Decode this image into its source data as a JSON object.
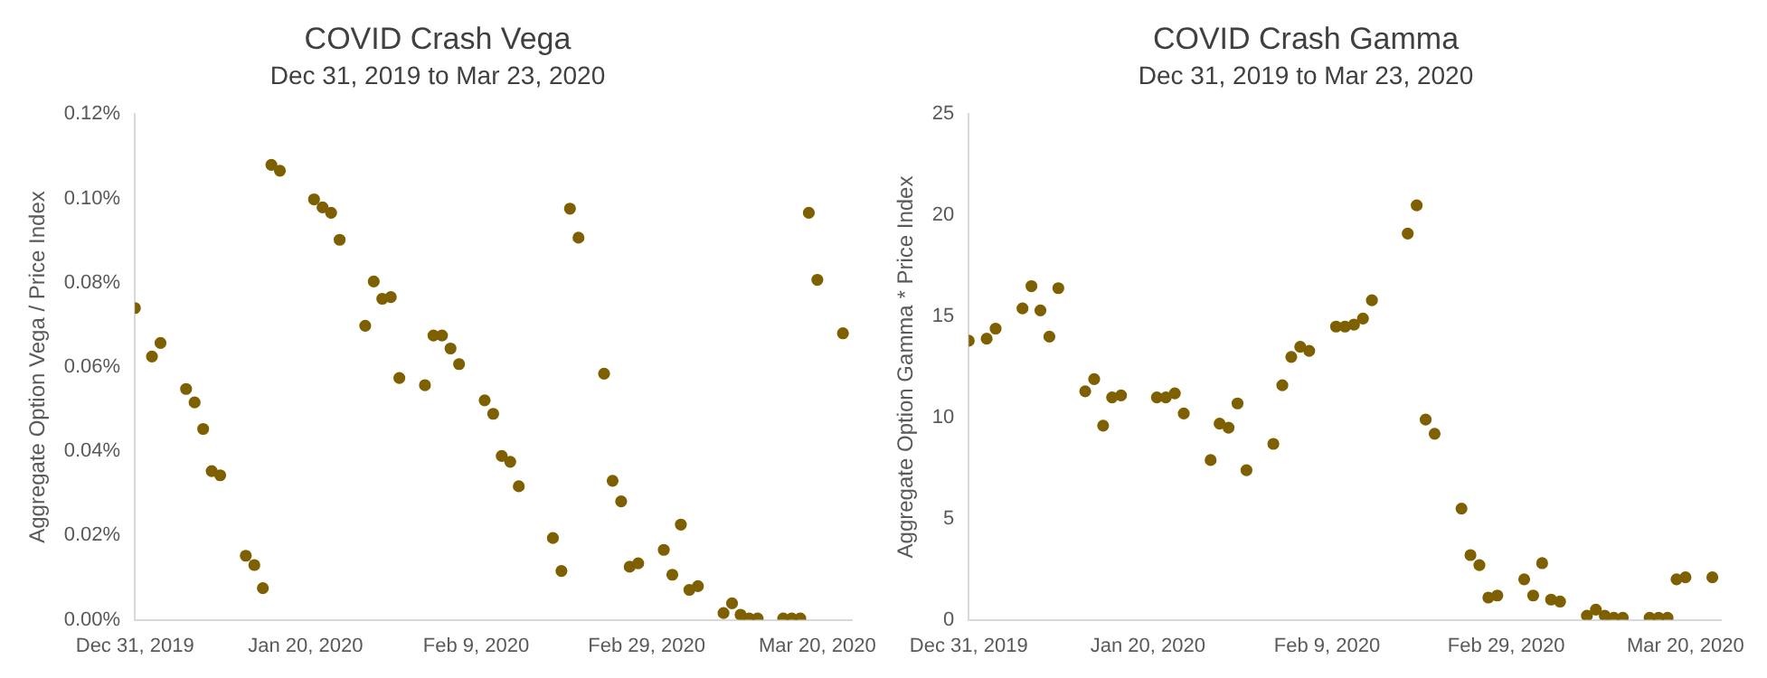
{
  "chart_data": [
    {
      "type": "scatter",
      "title": "COVID Crash Vega",
      "subtitle": "Dec 31, 2019 to Mar 23, 2020",
      "ylabel": "Aggregate Option Vega / Price Index",
      "marker": "circle",
      "grid": false,
      "legend": false,
      "xlim": [
        "2019-12-31",
        "2020-03-24"
      ],
      "xticks": [
        {
          "value": "2019-12-31",
          "label": "Dec 31, 2019"
        },
        {
          "value": "2020-01-20",
          "label": "Jan 20, 2020"
        },
        {
          "value": "2020-02-09",
          "label": "Feb 9, 2020"
        },
        {
          "value": "2020-02-29",
          "label": "Feb 29, 2020"
        },
        {
          "value": "2020-03-20",
          "label": "Mar 20, 2020"
        }
      ],
      "ylim": [
        0,
        0.12
      ],
      "yticks": [
        {
          "value": 0,
          "label": "0.00%"
        },
        {
          "value": 0.02,
          "label": "0.02%"
        },
        {
          "value": 0.04,
          "label": "0.04%"
        },
        {
          "value": 0.06,
          "label": "0.06%"
        },
        {
          "value": 0.08,
          "label": "0.08%"
        },
        {
          "value": 0.1,
          "label": "0.10%"
        },
        {
          "value": 0.12,
          "label": "0.12%"
        }
      ],
      "series": [
        {
          "color": "#7f6000",
          "x": [
            "2019-12-31",
            "2020-01-02",
            "2020-01-03",
            "2020-01-06",
            "2020-01-07",
            "2020-01-08",
            "2020-01-09",
            "2020-01-10",
            "2020-01-13",
            "2020-01-14",
            "2020-01-15",
            "2020-01-16",
            "2020-01-17",
            "2020-01-21",
            "2020-01-22",
            "2020-01-23",
            "2020-01-24",
            "2020-01-27",
            "2020-01-28",
            "2020-01-29",
            "2020-01-30",
            "2020-01-31",
            "2020-02-03",
            "2020-02-04",
            "2020-02-05",
            "2020-02-06",
            "2020-02-07",
            "2020-02-10",
            "2020-02-11",
            "2020-02-12",
            "2020-02-13",
            "2020-02-14",
            "2020-02-18",
            "2020-02-19",
            "2020-02-20",
            "2020-02-21",
            "2020-02-24",
            "2020-02-25",
            "2020-02-26",
            "2020-02-27",
            "2020-02-28",
            "2020-03-02",
            "2020-03-03",
            "2020-03-04",
            "2020-03-05",
            "2020-03-06",
            "2020-03-09",
            "2020-03-10",
            "2020-03-11",
            "2020-03-12",
            "2020-03-13",
            "2020-03-16",
            "2020-03-17",
            "2020-03-18",
            "2020-03-19",
            "2020-03-20",
            "2020-03-23"
          ],
          "values": [
            0.074,
            0.0625,
            0.0657,
            0.0548,
            0.0516,
            0.0453,
            0.0353,
            0.0343,
            0.0152,
            0.013,
            0.0075,
            0.108,
            0.1066,
            0.0998,
            0.0979,
            0.0966,
            0.0902,
            0.0698,
            0.0803,
            0.0762,
            0.0766,
            0.0574,
            0.0557,
            0.0675,
            0.0675,
            0.0644,
            0.0607,
            0.0521,
            0.0489,
            0.0389,
            0.0375,
            0.0317,
            0.0194,
            0.0116,
            0.0976,
            0.0907,
            0.0584,
            0.033,
            0.0281,
            0.0126,
            0.0134,
            0.0166,
            0.0107,
            0.0226,
            0.0071,
            0.008,
            0.0016,
            0.0039,
            0.0012,
            0.0003,
            0.0003,
            0.0003,
            0.0003,
            0.0003,
            0.0966,
            0.0807,
            0.068
          ]
        }
      ]
    },
    {
      "type": "scatter",
      "title": "COVID Crash Gamma",
      "subtitle": "Dec 31, 2019 to Mar 23, 2020",
      "ylabel": "Aggregate Option Gamma * Price Index",
      "marker": "circle",
      "grid": false,
      "legend": false,
      "xlim": [
        "2019-12-31",
        "2020-03-24"
      ],
      "xticks": [
        {
          "value": "2019-12-31",
          "label": "Dec 31, 2019"
        },
        {
          "value": "2020-01-20",
          "label": "Jan 20, 2020"
        },
        {
          "value": "2020-02-09",
          "label": "Feb 9, 2020"
        },
        {
          "value": "2020-02-29",
          "label": "Feb 29, 2020"
        },
        {
          "value": "2020-03-20",
          "label": "Mar 20, 2020"
        }
      ],
      "ylim": [
        0,
        25
      ],
      "yticks": [
        0,
        5,
        10,
        15,
        20,
        25
      ],
      "series": [
        {
          "color": "#7f6000",
          "x": [
            "2019-12-31",
            "2020-01-02",
            "2020-01-03",
            "2020-01-06",
            "2020-01-07",
            "2020-01-08",
            "2020-01-09",
            "2020-01-10",
            "2020-01-13",
            "2020-01-14",
            "2020-01-15",
            "2020-01-16",
            "2020-01-17",
            "2020-01-21",
            "2020-01-22",
            "2020-01-23",
            "2020-01-24",
            "2020-01-27",
            "2020-01-28",
            "2020-01-29",
            "2020-01-30",
            "2020-01-31",
            "2020-02-03",
            "2020-02-04",
            "2020-02-05",
            "2020-02-06",
            "2020-02-07",
            "2020-02-10",
            "2020-02-11",
            "2020-02-12",
            "2020-02-13",
            "2020-02-14",
            "2020-02-18",
            "2020-02-19",
            "2020-02-20",
            "2020-02-21",
            "2020-02-24",
            "2020-02-25",
            "2020-02-26",
            "2020-02-27",
            "2020-02-28",
            "2020-03-02",
            "2020-03-03",
            "2020-03-04",
            "2020-03-05",
            "2020-03-06",
            "2020-03-09",
            "2020-03-10",
            "2020-03-11",
            "2020-03-12",
            "2020-03-13",
            "2020-03-16",
            "2020-03-17",
            "2020-03-18",
            "2020-03-19",
            "2020-03-20",
            "2020-03-23"
          ],
          "values": [
            13.8,
            13.9,
            14.4,
            15.4,
            16.5,
            15.3,
            14.0,
            16.4,
            11.3,
            11.9,
            9.6,
            11.0,
            11.1,
            11.0,
            11.0,
            11.2,
            10.2,
            7.9,
            9.7,
            9.5,
            10.7,
            7.4,
            8.7,
            11.6,
            13.0,
            13.5,
            13.3,
            14.5,
            14.5,
            14.6,
            14.9,
            15.8,
            19.1,
            20.5,
            9.9,
            9.2,
            5.5,
            3.2,
            2.7,
            1.1,
            1.2,
            2.0,
            1.2,
            2.8,
            1.0,
            0.9,
            0.2,
            0.5,
            0.2,
            0.1,
            0.1,
            0.1,
            0.1,
            0.1,
            2.0,
            2.1,
            2.1
          ]
        }
      ]
    }
  ]
}
